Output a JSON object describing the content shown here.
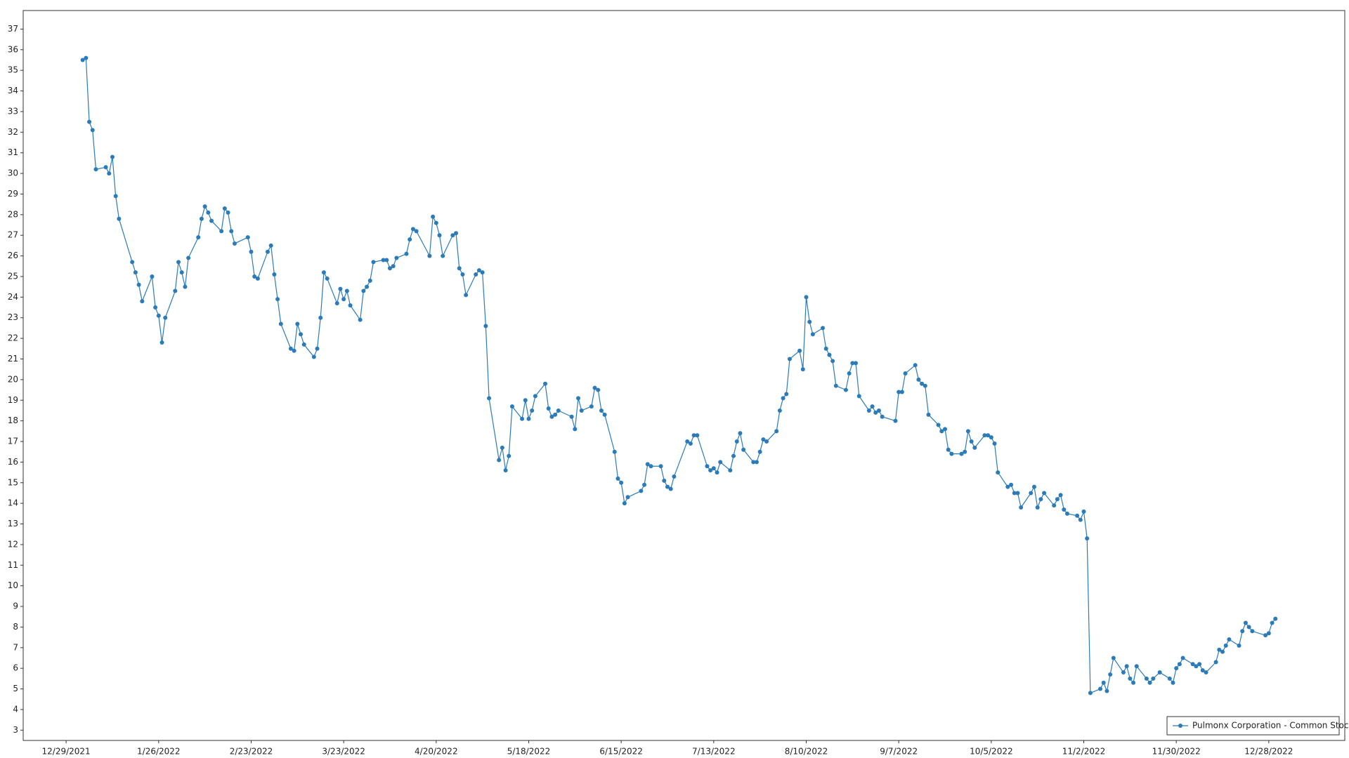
{
  "chart_data": {
    "type": "line",
    "x": [
      "1/3/2022",
      "1/4/2022",
      "1/5/2022",
      "1/6/2022",
      "1/7/2022",
      "1/10/2022",
      "1/11/2022",
      "1/12/2022",
      "1/13/2022",
      "1/14/2022",
      "1/18/2022",
      "1/19/2022",
      "1/20/2022",
      "1/21/2022",
      "1/24/2022",
      "1/25/2022",
      "1/26/2022",
      "1/27/2022",
      "1/28/2022",
      "1/31/2022",
      "2/1/2022",
      "2/2/2022",
      "2/3/2022",
      "2/4/2022",
      "2/7/2022",
      "2/8/2022",
      "2/9/2022",
      "2/10/2022",
      "2/11/2022",
      "2/14/2022",
      "2/15/2022",
      "2/16/2022",
      "2/17/2022",
      "2/18/2022",
      "2/22/2022",
      "2/23/2022",
      "2/24/2022",
      "2/25/2022",
      "2/28/2022",
      "3/1/2022",
      "3/2/2022",
      "3/3/2022",
      "3/4/2022",
      "3/7/2022",
      "3/8/2022",
      "3/9/2022",
      "3/10/2022",
      "3/11/2022",
      "3/14/2022",
      "3/15/2022",
      "3/16/2022",
      "3/17/2022",
      "3/18/2022",
      "3/21/2022",
      "3/22/2022",
      "3/23/2022",
      "3/24/2022",
      "3/25/2022",
      "3/28/2022",
      "3/29/2022",
      "3/30/2022",
      "3/31/2022",
      "4/1/2022",
      "4/4/2022",
      "4/5/2022",
      "4/6/2022",
      "4/7/2022",
      "4/8/2022",
      "4/11/2022",
      "4/12/2022",
      "4/13/2022",
      "4/14/2022",
      "4/18/2022",
      "4/19/2022",
      "4/20/2022",
      "4/21/2022",
      "4/22/2022",
      "4/25/2022",
      "4/26/2022",
      "4/27/2022",
      "4/28/2022",
      "4/29/2022",
      "5/2/2022",
      "5/3/2022",
      "5/4/2022",
      "5/5/2022",
      "5/6/2022",
      "5/9/2022",
      "5/10/2022",
      "5/11/2022",
      "5/12/2022",
      "5/13/2022",
      "5/16/2022",
      "5/17/2022",
      "5/18/2022",
      "5/19/2022",
      "5/20/2022",
      "5/23/2022",
      "5/24/2022",
      "5/25/2022",
      "5/26/2022",
      "5/27/2022",
      "5/31/2022",
      "6/1/2022",
      "6/2/2022",
      "6/3/2022",
      "6/6/2022",
      "6/7/2022",
      "6/8/2022",
      "6/9/2022",
      "6/10/2022",
      "6/13/2022",
      "6/14/2022",
      "6/15/2022",
      "6/16/2022",
      "6/17/2022",
      "6/21/2022",
      "6/22/2022",
      "6/23/2022",
      "6/24/2022",
      "6/27/2022",
      "6/28/2022",
      "6/29/2022",
      "6/30/2022",
      "7/1/2022",
      "7/5/2022",
      "7/6/2022",
      "7/7/2022",
      "7/8/2022",
      "7/11/2022",
      "7/12/2022",
      "7/13/2022",
      "7/14/2022",
      "7/15/2022",
      "7/18/2022",
      "7/19/2022",
      "7/20/2022",
      "7/21/2022",
      "7/22/2022",
      "7/25/2022",
      "7/26/2022",
      "7/27/2022",
      "7/28/2022",
      "7/29/2022",
      "8/1/2022",
      "8/2/2022",
      "8/3/2022",
      "8/4/2022",
      "8/5/2022",
      "8/8/2022",
      "8/9/2022",
      "8/10/2022",
      "8/11/2022",
      "8/12/2022",
      "8/15/2022",
      "8/16/2022",
      "8/17/2022",
      "8/18/2022",
      "8/19/2022",
      "8/22/2022",
      "8/23/2022",
      "8/24/2022",
      "8/25/2022",
      "8/26/2022",
      "8/29/2022",
      "8/30/2022",
      "8/31/2022",
      "9/1/2022",
      "9/2/2022",
      "9/6/2022",
      "9/7/2022",
      "9/8/2022",
      "9/9/2022",
      "9/12/2022",
      "9/13/2022",
      "9/14/2022",
      "9/15/2022",
      "9/16/2022",
      "9/19/2022",
      "9/20/2022",
      "9/21/2022",
      "9/22/2022",
      "9/23/2022",
      "9/26/2022",
      "9/27/2022",
      "9/28/2022",
      "9/29/2022",
      "9/30/2022",
      "10/3/2022",
      "10/4/2022",
      "10/5/2022",
      "10/6/2022",
      "10/7/2022",
      "10/10/2022",
      "10/11/2022",
      "10/12/2022",
      "10/13/2022",
      "10/14/2022",
      "10/17/2022",
      "10/18/2022",
      "10/19/2022",
      "10/20/2022",
      "10/21/2022",
      "10/24/2022",
      "10/25/2022",
      "10/26/2022",
      "10/27/2022",
      "10/28/2022",
      "10/31/2022",
      "11/1/2022",
      "11/2/2022",
      "11/3/2022",
      "11/4/2022",
      "11/7/2022",
      "11/8/2022",
      "11/9/2022",
      "11/10/2022",
      "11/11/2022",
      "11/14/2022",
      "11/15/2022",
      "11/16/2022",
      "11/17/2022",
      "11/18/2022",
      "11/21/2022",
      "11/22/2022",
      "11/23/2022",
      "11/25/2022",
      "11/28/2022",
      "11/29/2022",
      "11/30/2022",
      "12/1/2022",
      "12/2/2022",
      "12/5/2022",
      "12/6/2022",
      "12/7/2022",
      "12/8/2022",
      "12/9/2022",
      "12/12/2022",
      "12/13/2022",
      "12/14/2022",
      "12/15/2022",
      "12/16/2022",
      "12/19/2022",
      "12/20/2022",
      "12/21/2022",
      "12/22/2022",
      "12/23/2022",
      "12/27/2022",
      "12/28/2022",
      "12/29/2022",
      "12/30/2022"
    ],
    "series": [
      {
        "name": "Pulmonx Corporation - Common Stock",
        "color": "#2b7bb9",
        "values": [
          35.5,
          35.6,
          32.5,
          32.1,
          30.2,
          30.3,
          30.0,
          30.8,
          28.9,
          27.8,
          25.7,
          25.2,
          24.6,
          23.8,
          25.0,
          23.5,
          23.1,
          21.8,
          23.0,
          24.3,
          25.7,
          25.2,
          24.5,
          25.9,
          26.9,
          27.8,
          28.4,
          28.1,
          27.7,
          27.2,
          28.3,
          28.1,
          27.2,
          26.6,
          26.9,
          26.2,
          25.0,
          24.9,
          26.2,
          26.5,
          25.1,
          23.9,
          22.7,
          21.5,
          21.4,
          22.7,
          22.2,
          21.7,
          21.1,
          21.5,
          23.0,
          25.2,
          24.9,
          23.7,
          24.4,
          23.9,
          24.3,
          23.6,
          22.9,
          24.3,
          24.5,
          24.8,
          25.7,
          25.8,
          25.8,
          25.4,
          25.5,
          25.9,
          26.1,
          26.8,
          27.3,
          27.2,
          26.0,
          27.9,
          27.6,
          27.0,
          26.0,
          27.0,
          27.1,
          25.4,
          25.1,
          24.1,
          25.1,
          25.3,
          25.2,
          22.6,
          19.1,
          16.1,
          16.7,
          15.6,
          16.3,
          18.7,
          18.1,
          19.0,
          18.1,
          18.5,
          19.2,
          19.8,
          18.6,
          18.2,
          18.3,
          18.5,
          18.2,
          17.6,
          19.1,
          18.5,
          18.7,
          19.6,
          19.5,
          18.5,
          18.3,
          16.5,
          15.2,
          15.0,
          14.0,
          14.3,
          14.6,
          14.9,
          15.9,
          15.8,
          15.8,
          15.1,
          14.8,
          14.7,
          15.3,
          17.0,
          16.9,
          17.3,
          17.3,
          15.8,
          15.6,
          15.7,
          15.5,
          16.0,
          15.6,
          16.3,
          17.0,
          17.4,
          16.6,
          16.0,
          16.0,
          16.5,
          17.1,
          17.0,
          17.5,
          18.5,
          19.1,
          19.3,
          21.0,
          21.4,
          20.5,
          24.0,
          22.8,
          22.2,
          22.5,
          21.5,
          21.2,
          20.9,
          19.7,
          19.5,
          20.3,
          20.8,
          20.8,
          19.2,
          18.5,
          18.7,
          18.4,
          18.5,
          18.2,
          18.0,
          19.4,
          19.4,
          20.3,
          20.7,
          20.0,
          19.8,
          19.7,
          18.3,
          17.8,
          17.5,
          17.6,
          16.6,
          16.4,
          16.4,
          16.5,
          17.5,
          17.0,
          16.7,
          17.3,
          17.3,
          17.2,
          16.9,
          15.5,
          14.8,
          14.9,
          14.5,
          14.5,
          13.8,
          14.5,
          14.8,
          13.8,
          14.2,
          14.5,
          13.9,
          14.2,
          14.4,
          13.7,
          13.5,
          13.4,
          13.2,
          13.6,
          12.3,
          4.8,
          5.0,
          5.3,
          4.9,
          5.7,
          6.5,
          5.8,
          6.1,
          5.5,
          5.3,
          6.1,
          5.5,
          5.3,
          5.5,
          5.8,
          5.5,
          5.3,
          6.0,
          6.2,
          6.5,
          6.2,
          6.1,
          6.2,
          5.9,
          5.8,
          6.3,
          6.9,
          6.8,
          7.1,
          7.4,
          7.1,
          7.8,
          8.2,
          8.0,
          7.8,
          7.6,
          7.7,
          8.2,
          8.4
        ]
      }
    ],
    "xlim": [
      "12/16/2021",
      "1/20/2023"
    ],
    "xticks": [
      "12/29/2021",
      "1/26/2022",
      "2/23/2022",
      "3/23/2022",
      "4/20/2022",
      "5/18/2022",
      "6/15/2022",
      "7/13/2022",
      "8/10/2022",
      "9/7/2022",
      "10/5/2022",
      "11/2/2022",
      "11/30/2022",
      "12/28/2022"
    ],
    "ylim": [
      2.5,
      37.9
    ],
    "yticks": [
      3,
      4,
      5,
      6,
      7,
      8,
      9,
      10,
      11,
      12,
      13,
      14,
      15,
      16,
      17,
      18,
      19,
      20,
      21,
      22,
      23,
      24,
      25,
      26,
      27,
      28,
      29,
      30,
      31,
      32,
      33,
      34,
      35,
      36,
      37
    ],
    "grid": true,
    "legend": "lower right"
  }
}
